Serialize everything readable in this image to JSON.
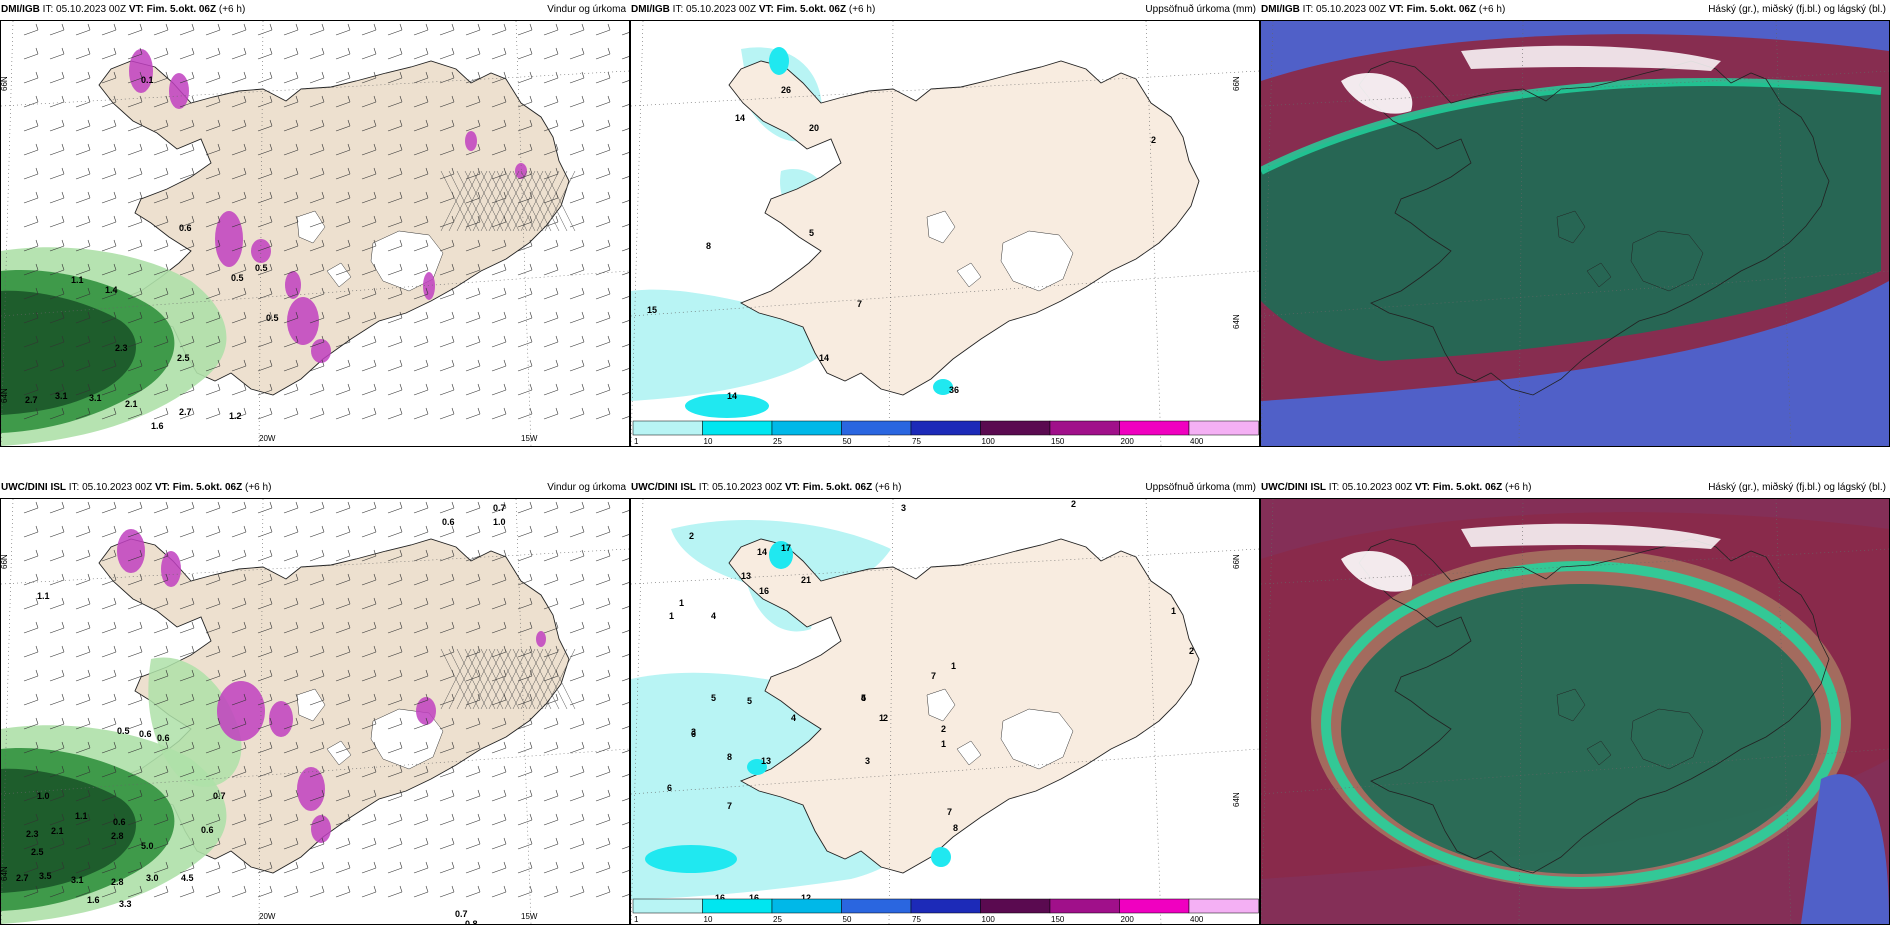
{
  "panels": [
    {
      "model": "DMI/IGB",
      "it": "IT: 05.10.2023 00Z",
      "vt_label": "VT:",
      "vt": "Fim. 5.okt. 06Z",
      "lead": "(+6 h)",
      "product": "Vindur og úrkoma",
      "labels": [
        "0.1",
        "0.6",
        "1.1",
        "1.4",
        "2.3",
        "2.5",
        "2.7",
        "3.1",
        "3.1",
        "2.1",
        "2.7",
        "1.6",
        "1.2",
        "0.5",
        "0.5",
        "0.5"
      ],
      "lon_ticks": [
        "20W",
        "15W"
      ],
      "lat_ticks": [
        "66N",
        "64N"
      ]
    },
    {
      "model": "DMI/IGB",
      "it": "IT: 05.10.2023 00Z",
      "vt_label": "VT:",
      "vt": "Fim. 5.okt. 06Z",
      "lead": "(+6 h)",
      "product": "Uppsöfnuð úrkoma (mm)",
      "labels": [
        "26",
        "20",
        "14",
        "5",
        "7",
        "15",
        "14",
        "14",
        "36",
        "2",
        "8"
      ],
      "legend": [
        "1",
        "10",
        "25",
        "50",
        "75",
        "100",
        "150",
        "200",
        "400"
      ],
      "lat_ticks": [
        "66N",
        "64N"
      ]
    },
    {
      "model": "DMI/IGB",
      "it": "IT: 05.10.2023 00Z",
      "vt_label": "VT:",
      "vt": "Fim. 5.okt. 06Z",
      "lead": "(+6 h)",
      "product": "Háský (gr.), miðský (fj.bl.) og lágský (bl.)"
    },
    {
      "model": "UWC/DINI ISL",
      "it": "IT: 05.10.2023 00Z",
      "vt_label": "VT:",
      "vt": "Fim. 5.okt. 06Z",
      "lead": "(+6 h)",
      "product": "Vindur og úrkoma",
      "labels": [
        "0.7",
        "1.0",
        "0.6",
        "1.1",
        "0.5",
        "0.6",
        "0.6",
        "1.0",
        "1.1",
        "0.6",
        "2.3",
        "2.1",
        "2.8",
        "5.0",
        "2.5",
        "3.5",
        "3.1",
        "2.8",
        "3.0",
        "4.5",
        "2.7",
        "1.6",
        "3.3",
        "0.7",
        "0.8",
        "0.6",
        "0.7"
      ],
      "lon_ticks": [
        "20W",
        "15W"
      ],
      "lat_ticks": [
        "66N",
        "64N"
      ]
    },
    {
      "model": "UWC/DINI ISL",
      "it": "IT: 05.10.2023 00Z",
      "vt_label": "VT:",
      "vt": "Fim. 5.okt. 06Z",
      "lead": "(+6 h)",
      "product": "Uppsöfnuð úrkoma (mm)",
      "labels": [
        "3",
        "2",
        "2",
        "14",
        "17",
        "21",
        "13",
        "16",
        "1",
        "1",
        "4",
        "5",
        "4",
        "5",
        "3",
        "6",
        "7",
        "8",
        "13",
        "8",
        "7",
        "6",
        "16",
        "16",
        "16",
        "12",
        "12",
        "5",
        "4",
        "3",
        "2",
        "1",
        "1",
        "2",
        "1",
        "7",
        "2",
        "1"
      ],
      "legend": [
        "1",
        "10",
        "25",
        "50",
        "75",
        "100",
        "150",
        "200",
        "400"
      ],
      "lat_ticks": [
        "66N",
        "64N"
      ]
    },
    {
      "model": "UWC/DINI ISL",
      "it": "IT: 05.10.2023 00Z",
      "vt_label": "VT:",
      "vt": "Fim. 5.okt. 06Z",
      "lead": "(+6 h)",
      "product": "Háský (gr.), miðský (fj.bl.) og lágský (bl.)"
    }
  ],
  "colors": {
    "land": "#ede0cf",
    "land_precip": "#f8ece0",
    "sea": "#ffffff",
    "wind_green_dark": "#1e5d2c",
    "wind_green_mid": "#3f9a4a",
    "wind_green_light": "#aee0a8",
    "precip_magenta": "#c040c0",
    "precip_pale": "#b8f4f4",
    "precip_cyan": "#20e8f0",
    "cloud_high": "#1e6b55",
    "cloud_mid": "#8a2a4a",
    "cloud_low": "#5060c8",
    "cloud_cyan": "#20d8a0",
    "legend": [
      "#b8f4f4",
      "#00e6f0",
      "#00b8e8",
      "#2a66e0",
      "#1c2ab8",
      "#5a0a50",
      "#a0108a",
      "#f000c0",
      "#f4b0f4"
    ]
  }
}
